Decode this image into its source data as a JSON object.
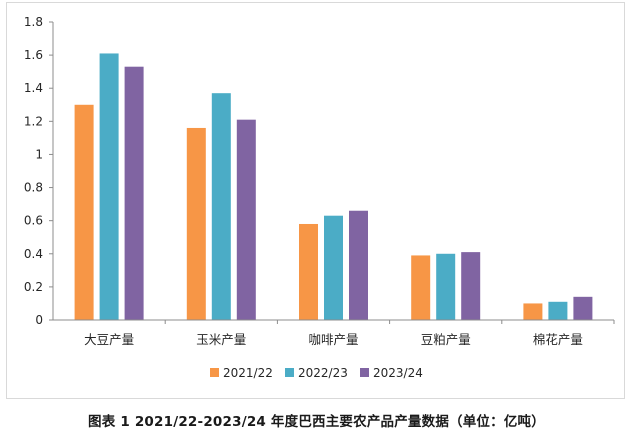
{
  "chart_data": {
    "type": "bar",
    "title": "",
    "xlabel": "",
    "ylabel": "",
    "categories": [
      "大豆产量",
      "玉米产量",
      "咖啡产量",
      "豆粕产量",
      "棉花产量"
    ],
    "series": [
      {
        "name": "2021/22",
        "color": "#f79646",
        "values": [
          1.3,
          1.16,
          0.58,
          0.39,
          0.1
        ]
      },
      {
        "name": "2022/23",
        "color": "#4bacc6",
        "values": [
          1.61,
          1.37,
          0.63,
          0.4,
          0.11
        ]
      },
      {
        "name": "2023/24",
        "color": "#8064a2",
        "values": [
          1.53,
          1.21,
          0.66,
          0.41,
          0.14
        ]
      }
    ],
    "ylim": [
      0,
      1.8
    ],
    "yticks": [
      "0",
      "0.2",
      "0.4",
      "0.6",
      "0.8",
      "1",
      "1.2",
      "1.4",
      "1.6",
      "1.8"
    ],
    "grid": false,
    "legend_position": "bottom-center"
  },
  "caption": "图表 1 2021/22-2023/24 年度巴西主要农产品产量数据（单位：亿吨）"
}
